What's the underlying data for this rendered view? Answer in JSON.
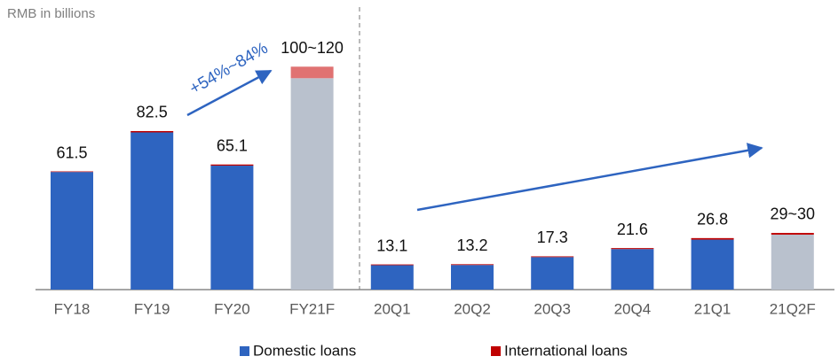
{
  "chart_data": {
    "type": "stacked_bar",
    "subtitle": "RMB in billions",
    "annotation": "+54%~84%",
    "categories": [
      "FY18",
      "FY19",
      "FY20",
      "FY21F",
      "20Q1",
      "20Q2",
      "20Q3",
      "20Q4",
      "21Q1",
      "21Q2F"
    ],
    "series": [
      {
        "name": "Domestic loans",
        "color": "#2e64c0",
        "colors": [
          "#2e64c0",
          "#2e64c0",
          "#2e64c0",
          "#b9c1cd",
          "#2e64c0",
          "#2e64c0",
          "#2e64c0",
          "#2e64c0",
          "#2e64c0",
          "#b9c1cd"
        ],
        "values": [
          61.2,
          81.8,
          64.5,
          110,
          12.7,
          12.8,
          16.9,
          21.1,
          26.0,
          28.6
        ]
      },
      {
        "name": "International loans",
        "color": "#c00000",
        "colors": [
          "#c00000",
          "#c00000",
          "#c00000",
          "#e07272",
          "#c00000",
          "#c00000",
          "#c00000",
          "#c00000",
          "#c00000",
          "#c00000"
        ],
        "values": [
          0.3,
          0.7,
          0.6,
          6,
          0.4,
          0.4,
          0.4,
          0.5,
          0.8,
          0.9
        ]
      }
    ],
    "total_labels": [
      "61.5",
      "82.5",
      "65.1",
      "100~120",
      "13.1",
      "13.2",
      "17.3",
      "21.6",
      "26.8",
      "29~30"
    ],
    "legend": "bottom"
  }
}
